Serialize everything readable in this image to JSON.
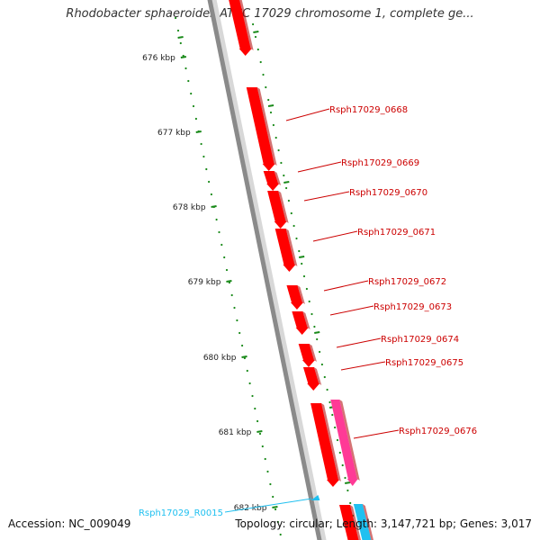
{
  "title": "Rhodobacter sphaeroides ATCC 17029 chromosome 1, complete ge...",
  "footer": {
    "accession": "Accession: NC_009049",
    "summary": "Topology: circular; Length: 3,147,721 bp; Genes: 3,017"
  },
  "colors": {
    "gene": "#ff0000",
    "gene_dark": "#b00000",
    "highlight_gene": "#ff3a96",
    "rna": "#20c0f0",
    "ticks": "#1a8a1a",
    "backbone": "#8a8a8a"
  },
  "ruler": {
    "unit": "kbp",
    "ticks": [
      {
        "label": "676 kbp",
        "value": 676
      },
      {
        "label": "677 kbp",
        "value": 677
      },
      {
        "label": "678 kbp",
        "value": 678
      },
      {
        "label": "679 kbp",
        "value": 679
      },
      {
        "label": "680 kbp",
        "value": 680
      },
      {
        "label": "681 kbp",
        "value": 681
      },
      {
        "label": "682 kbp",
        "value": 682
      }
    ]
  },
  "genes": [
    {
      "label": "Rsph17029_0668"
    },
    {
      "label": "Rsph17029_0669"
    },
    {
      "label": "Rsph17029_0670"
    },
    {
      "label": "Rsph17029_0671"
    },
    {
      "label": "Rsph17029_0672"
    },
    {
      "label": "Rsph17029_0673"
    },
    {
      "label": "Rsph17029_0674"
    },
    {
      "label": "Rsph17029_0675"
    },
    {
      "label": "Rsph17029_0676"
    }
  ],
  "rna": [
    {
      "label": "Rsph17029_R0015"
    }
  ]
}
